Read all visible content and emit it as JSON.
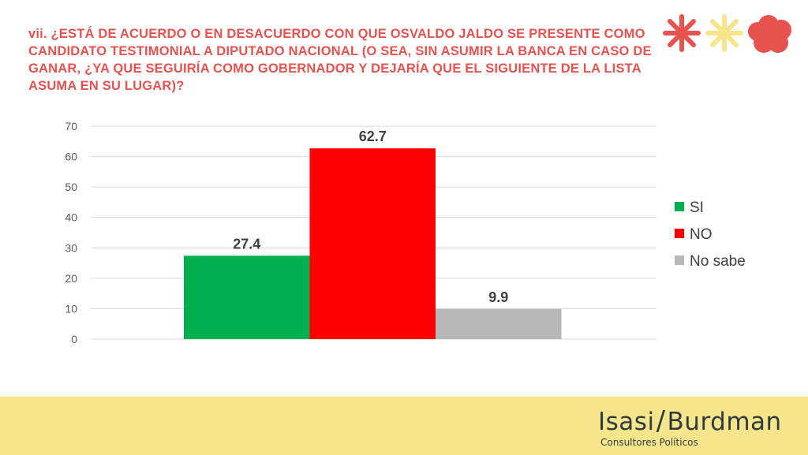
{
  "title": "vii. ¿ESTÁ DE ACUERDO O EN DESACUERDO CON QUE OSVALDO JALDO SE PRESENTE COMO CANDIDATO TESTIMONIAL A DIPUTADO NACIONAL (O SEA, SIN ASUMIR LA BANCA EN CASO DE GANAR, ¿YA QUE SEGUIRÍA COMO GOBERNADOR Y DEJARÍA QUE EL SIGUIENTE DE LA LISTA ASUMA EN SU LUGAR)?",
  "colors": {
    "title": "#e8524f",
    "footer_background": "#f7e58c",
    "logo_asterisk_1": "#e8524f",
    "logo_asterisk_2": "#f7e58c",
    "logo_cloud": "#e8524f"
  },
  "chart_data": {
    "type": "bar",
    "categories": [
      "SI",
      "NO",
      "No sabe"
    ],
    "values": [
      27.4,
      62.7,
      9.9
    ],
    "value_labels": [
      "27.4",
      "62.7",
      "9.9"
    ],
    "colors": [
      "#00b050",
      "#ff0000",
      "#b7b7b7"
    ],
    "ylim": [
      0,
      70
    ],
    "yticks": [
      0,
      10,
      20,
      30,
      40,
      50,
      60,
      70
    ],
    "grid": true,
    "legend": {
      "position": "right",
      "entries": [
        "SI",
        "NO",
        "No sabe"
      ]
    }
  },
  "footer": {
    "brand_left": "Isasi",
    "brand_slash": "/",
    "brand_right": "Burdman",
    "tagline": "Consultores Políticos"
  }
}
